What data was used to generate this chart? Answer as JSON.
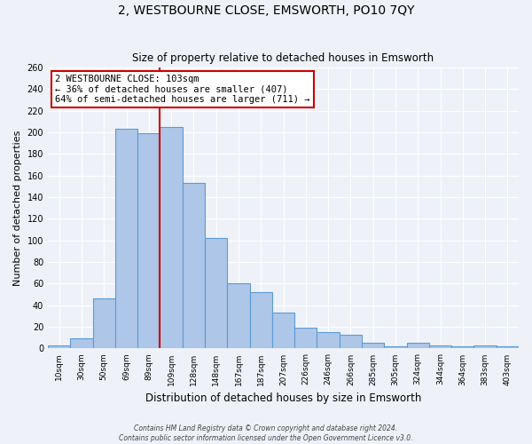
{
  "title": "2, WESTBOURNE CLOSE, EMSWORTH, PO10 7QY",
  "subtitle": "Size of property relative to detached houses in Emsworth",
  "xlabel": "Distribution of detached houses by size in Emsworth",
  "ylabel": "Number of detached properties",
  "bin_labels": [
    "10sqm",
    "30sqm",
    "50sqm",
    "69sqm",
    "89sqm",
    "109sqm",
    "128sqm",
    "148sqm",
    "167sqm",
    "187sqm",
    "207sqm",
    "226sqm",
    "246sqm",
    "266sqm",
    "285sqm",
    "305sqm",
    "324sqm",
    "344sqm",
    "364sqm",
    "383sqm",
    "403sqm"
  ],
  "bar_heights": [
    3,
    9,
    46,
    203,
    199,
    205,
    153,
    102,
    60,
    52,
    33,
    19,
    15,
    13,
    5,
    2,
    5,
    3,
    2,
    3,
    2
  ],
  "bar_color": "#aec6e8",
  "bar_edge_color": "#5b9bd5",
  "vertical_line_x": 4.5,
  "annotation_title": "2 WESTBOURNE CLOSE: 103sqm",
  "annotation_line1": "← 36% of detached houses are smaller (407)",
  "annotation_line2": "64% of semi-detached houses are larger (711) →",
  "annotation_box_color": "#ffffff",
  "annotation_box_edge_color": "#cc0000",
  "vertical_line_color": "#cc0000",
  "ylim": [
    0,
    260
  ],
  "yticks": [
    0,
    20,
    40,
    60,
    80,
    100,
    120,
    140,
    160,
    180,
    200,
    220,
    240,
    260
  ],
  "footer1": "Contains HM Land Registry data © Crown copyright and database right 2024.",
  "footer2": "Contains public sector information licensed under the Open Government Licence v3.0.",
  "background_color": "#eef2f8",
  "grid_color": "#ffffff"
}
